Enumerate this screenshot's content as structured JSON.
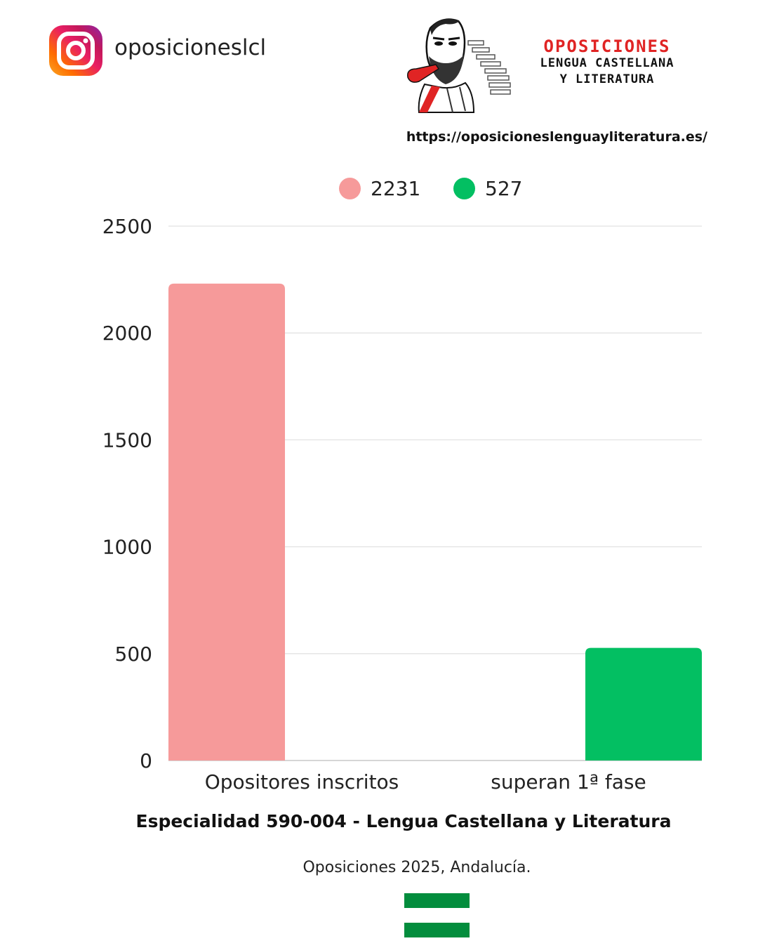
{
  "header": {
    "social_icon": "instagram-icon",
    "handle": "oposicioneslcl",
    "logo": {
      "line1": "OPOSICIONES",
      "line2": "LENGUA CASTELLANA",
      "line3": "Y LITERATURA"
    },
    "url": "https://oposicioneslenguayliteratura.es/"
  },
  "chart_data": {
    "type": "bar",
    "categories": [
      "Opositores inscritos",
      "superan 1ª fase"
    ],
    "values": [
      2231,
      527
    ],
    "colors": [
      "#f69a9a",
      "#03bf62"
    ],
    "legend": {
      "position": "top",
      "entries": [
        {
          "label": "2231",
          "color": "#f69a9a"
        },
        {
          "label": "527",
          "color": "#03bf62"
        }
      ]
    },
    "ylim": [
      0,
      2500
    ],
    "yticks": [
      "0",
      "500",
      "1000",
      "1500",
      "2000",
      "2500"
    ],
    "grid": true,
    "xlabel": "",
    "ylabel": "",
    "title": "Especialidad 590-004 - Lengua Castellana y Literatura",
    "subtitle": "Oposiciones 2025, Andalucía."
  },
  "footer": {
    "flag_colors": [
      "#038d3d",
      "#ffffff",
      "#038d3d",
      "#ffffff"
    ]
  }
}
